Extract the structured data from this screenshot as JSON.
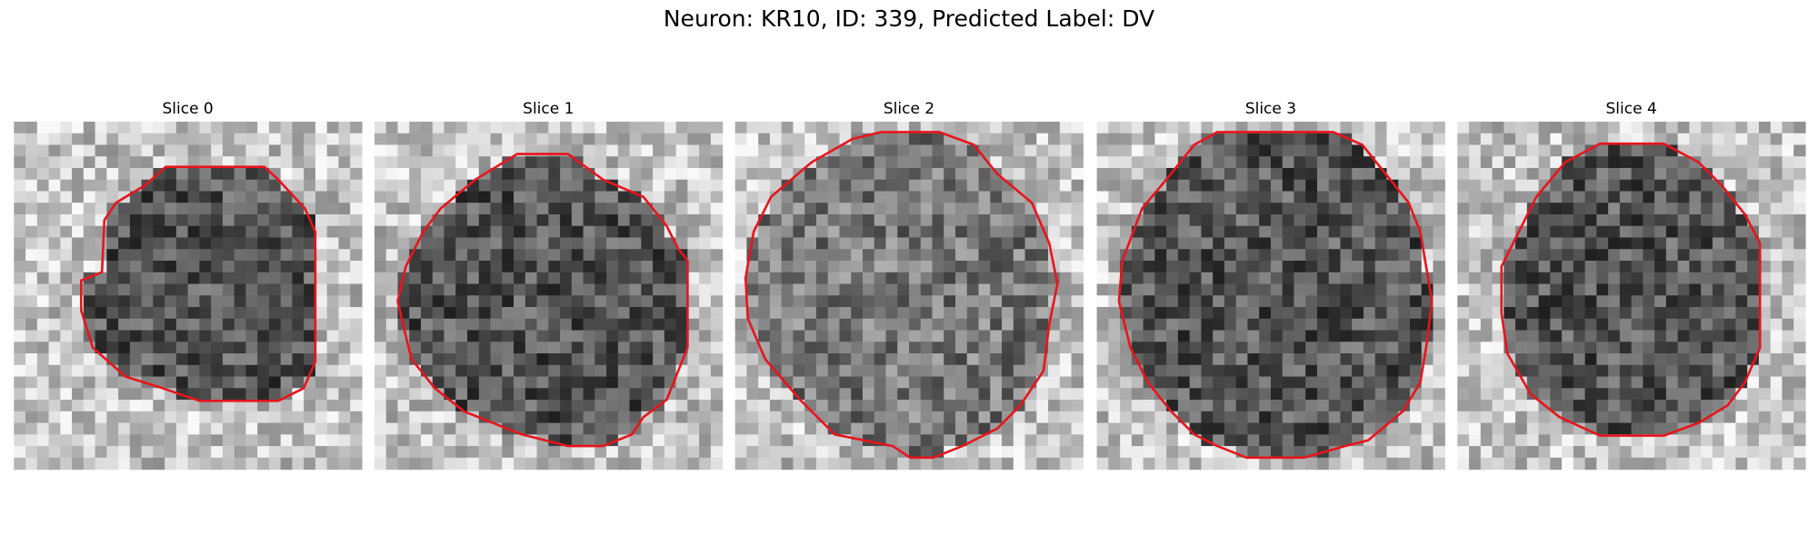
{
  "title": "Neuron: KR10, ID: 339, Predicted Label: DV",
  "panels": [
    {
      "title": "Slice 0"
    },
    {
      "title": "Slice 1"
    },
    {
      "title": "Slice 2"
    },
    {
      "title": "Slice 3"
    },
    {
      "title": "Slice 4"
    }
  ]
}
